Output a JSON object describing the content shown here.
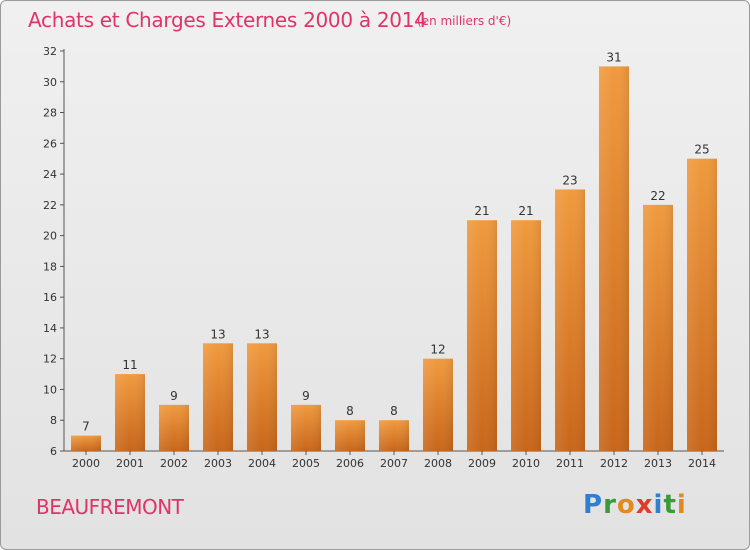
{
  "header": {
    "title": "Achats et Charges Externes 2000 à 2014",
    "subtitle": "(en milliers d'€)"
  },
  "footer": {
    "commune": "BEAUFREMONT",
    "logo_letters": [
      {
        "ch": "P",
        "color": "#2e7fd0"
      },
      {
        "ch": "r",
        "color": "#3a9a3a"
      },
      {
        "ch": "o",
        "color": "#e48a1c"
      },
      {
        "ch": "x",
        "color": "#e03a2a"
      },
      {
        "ch": "i",
        "color": "#2e7fd0"
      },
      {
        "ch": "t",
        "color": "#3a9a3a"
      },
      {
        "ch": "i",
        "color": "#e48a1c"
      }
    ]
  },
  "chart_data": {
    "type": "bar",
    "title": "Achats et Charges Externes 2000 à 2014",
    "subtitle": "(en milliers d'€)",
    "xlabel": "",
    "ylabel": "",
    "categories": [
      "2000",
      "2001",
      "2002",
      "2003",
      "2004",
      "2005",
      "2006",
      "2007",
      "2008",
      "2009",
      "2010",
      "2011",
      "2012",
      "2013",
      "2014"
    ],
    "values": [
      7,
      11,
      9,
      13,
      13,
      9,
      8,
      8,
      12,
      21,
      21,
      23,
      31,
      22,
      25
    ],
    "ylim": [
      6,
      32
    ],
    "yticks": [
      6,
      8,
      10,
      12,
      14,
      16,
      18,
      20,
      22,
      24,
      26,
      28,
      30,
      32
    ],
    "grid": false,
    "bar_color": "#f09a3e",
    "bar_color_dark": "#c8661a"
  }
}
